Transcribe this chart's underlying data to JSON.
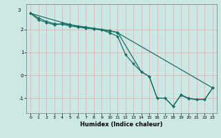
{
  "xlabel": "Humidex (Indice chaleur)",
  "bg_color": "#cce8e4",
  "grid_color": "#e8b0b0",
  "line_color": "#1a6e64",
  "xlim": [
    -0.5,
    23.5
  ],
  "ylim": [
    -1.65,
    3.1
  ],
  "yticks": [
    -1,
    0,
    1,
    2
  ],
  "ytop_label": "3",
  "xticks": [
    0,
    1,
    2,
    3,
    4,
    5,
    6,
    7,
    8,
    9,
    10,
    11,
    12,
    13,
    14,
    15,
    16,
    17,
    18,
    19,
    20,
    21,
    22,
    23
  ],
  "line1_x": [
    0,
    1,
    2,
    3,
    4,
    5,
    6,
    7,
    8,
    9,
    10,
    11,
    12,
    13,
    14,
    15,
    16,
    17,
    18,
    19,
    20,
    21,
    22,
    23
  ],
  "line1_y": [
    2.7,
    2.5,
    2.35,
    2.25,
    2.22,
    2.15,
    2.1,
    2.05,
    2.02,
    1.98,
    1.85,
    1.7,
    0.9,
    0.5,
    0.15,
    -0.05,
    -1.0,
    -1.0,
    -1.35,
    -0.85,
    -1.0,
    -1.05,
    -1.05,
    -0.55
  ],
  "line2_x": [
    0,
    1,
    2,
    3,
    4,
    5,
    6,
    7,
    8,
    9,
    10,
    11,
    23
  ],
  "line2_y": [
    2.7,
    2.42,
    2.3,
    2.2,
    2.25,
    2.2,
    2.15,
    2.1,
    2.05,
    2.0,
    1.95,
    1.85,
    -0.55
  ],
  "line3_x": [
    0,
    4,
    5,
    6,
    7,
    8,
    9,
    10,
    11,
    14,
    15,
    16,
    17,
    18,
    19,
    20,
    21,
    22,
    23
  ],
  "line3_y": [
    2.7,
    2.3,
    2.22,
    2.12,
    2.08,
    2.02,
    1.98,
    1.92,
    1.88,
    0.15,
    -0.05,
    -1.0,
    -1.0,
    -1.35,
    -0.87,
    -1.02,
    -1.06,
    -1.06,
    -0.55
  ],
  "marker": "D",
  "markersize": 2.0,
  "linewidth": 0.9
}
